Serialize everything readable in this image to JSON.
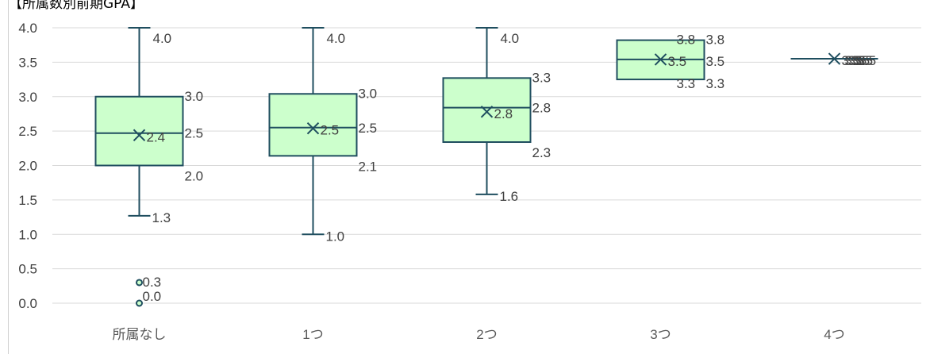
{
  "chart_data": {
    "type": "boxplot",
    "title": "【所属数別前期GPA】",
    "xlabel": "",
    "ylabel": "",
    "ylim": [
      0,
      4
    ],
    "yticks": [
      "0.0",
      "0.5",
      "1.0",
      "1.5",
      "2.0",
      "2.5",
      "3.0",
      "3.5",
      "4.0"
    ],
    "grid": true,
    "legend": "none",
    "colors": {
      "box_fill": "#ccffcc",
      "stroke": "#1f4e5f",
      "grid": "#d9d9d9",
      "label": "#404040"
    },
    "categories": [
      "所属なし",
      "1つ",
      "2つ",
      "3つ",
      "4つ"
    ],
    "boxes": [
      {
        "category": "所属なし",
        "min": 1.27,
        "q1": 2.0,
        "median": 2.47,
        "q3": 3.0,
        "max": 4.0,
        "mean": 2.44,
        "outliers": [
          0.3,
          0.0
        ],
        "labels": {
          "max": "4.0",
          "q3": "3.0",
          "median": "2.5",
          "mean": "2.4",
          "q1": "2.0",
          "min": "1.3",
          "outliers": [
            "0.3",
            "0.0"
          ]
        }
      },
      {
        "category": "1つ",
        "min": 1.0,
        "q1": 2.14,
        "median": 2.55,
        "q3": 3.04,
        "max": 4.0,
        "mean": 2.54,
        "outliers": [],
        "labels": {
          "max": "4.0",
          "q3": "3.0",
          "median": "2.5",
          "mean": "2.5",
          "q1": "2.1",
          "min": "1.0",
          "outliers": []
        }
      },
      {
        "category": "2つ",
        "min": 1.58,
        "q1": 2.34,
        "median": 2.84,
        "q3": 3.27,
        "max": 4.0,
        "mean": 2.78,
        "outliers": [],
        "labels": {
          "max": "4.0",
          "q3": "3.3",
          "median": "2.8",
          "mean": "2.8",
          "q1": "2.3",
          "min": "1.6",
          "outliers": []
        }
      },
      {
        "category": "3つ",
        "min": 3.25,
        "q1": 3.25,
        "median": 3.54,
        "q3": 3.82,
        "max": 3.82,
        "mean": 3.54,
        "outliers": [],
        "labels": {
          "max": "3.8",
          "q3": "3.8",
          "median": "3.5",
          "mean": "3.5",
          "q1": "3.3",
          "min": "3.3",
          "outliers": []
        }
      },
      {
        "category": "4つ",
        "min": 3.55,
        "q1": 3.55,
        "median": 3.55,
        "q3": 3.55,
        "max": 3.55,
        "mean": 3.55,
        "outliers": [],
        "labels": {
          "max": "3.5",
          "q3": "3.5",
          "median": "3.5",
          "mean": "3.5",
          "q1": "3.5",
          "min": "3.5",
          "outliers": []
        }
      }
    ]
  }
}
